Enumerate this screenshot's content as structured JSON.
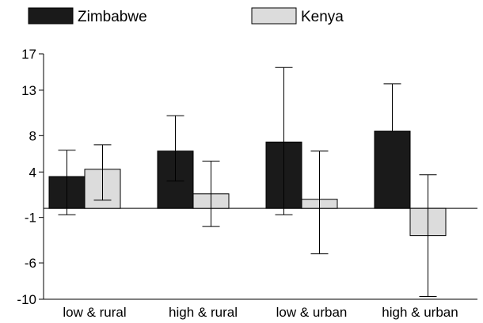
{
  "chart_data": {
    "type": "bar",
    "title": "",
    "xlabel": "",
    "ylabel": "",
    "categories": [
      "low & rural",
      "high & rural",
      "low & urban",
      "high & urban"
    ],
    "yticks": [
      17,
      13,
      8,
      4,
      -1,
      -6,
      -10
    ],
    "ylim": [
      -10,
      17
    ],
    "grid": false,
    "legend_position": "top",
    "series": [
      {
        "name": "Zimbabwe",
        "color": "#1a1a1a",
        "values": [
          3.5,
          6.3,
          7.3,
          8.5
        ],
        "error_low": [
          -0.7,
          3.0,
          -0.7,
          null
        ],
        "error_high": [
          6.4,
          10.2,
          15.5,
          13.7
        ]
      },
      {
        "name": "Kenya",
        "color": "#dcdcdc",
        "values": [
          4.3,
          1.6,
          1.0,
          -3.0
        ],
        "error_low": [
          0.9,
          -2.0,
          -5.0,
          -9.7
        ],
        "error_high": [
          7.0,
          5.2,
          6.3,
          3.7
        ]
      }
    ]
  }
}
